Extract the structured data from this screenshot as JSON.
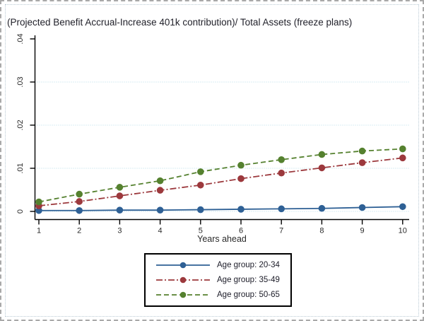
{
  "chart_data": {
    "type": "line",
    "title": "(Projected Benefit Accrual-Increase 401k contribution)/ Total Assets (freeze plans)",
    "xlabel": "Years ahead",
    "ylabel": "",
    "x": [
      1,
      2,
      3,
      4,
      5,
      6,
      7,
      8,
      9,
      10
    ],
    "xlim": [
      1,
      10
    ],
    "ylim": [
      0,
      0.04
    ],
    "yticks": [
      {
        "label": "0",
        "value": 0.0,
        "grid": true
      },
      {
        "label": ".01",
        "value": 0.01,
        "grid": true
      },
      {
        "label": ".02",
        "value": 0.02,
        "grid": true
      },
      {
        "label": ".03",
        "value": 0.03,
        "grid": true
      },
      {
        "label": ".04",
        "value": 0.04,
        "grid": false
      }
    ],
    "grid": "horizontal-dotted",
    "gridline_color": "#b5dbe6",
    "axis_color": "#000000",
    "legend_position": "bottom-center",
    "series": [
      {
        "name": "Age group: 20-34",
        "color": "#2e6095",
        "line_style": "solid",
        "marker": "circle",
        "values": [
          0.0002,
          0.0002,
          0.0003,
          0.0003,
          0.0004,
          0.0005,
          0.0006,
          0.0007,
          0.0009,
          0.0011
        ]
      },
      {
        "name": "Age group: 35-49",
        "color": "#9c393d",
        "line_style": "dash-dot",
        "marker": "circle",
        "values": [
          0.0013,
          0.0023,
          0.0036,
          0.0049,
          0.0061,
          0.0076,
          0.0089,
          0.0101,
          0.0113,
          0.0124
        ]
      },
      {
        "name": "Age group: 50-65",
        "color": "#55812f",
        "line_style": "dash",
        "marker": "circle",
        "values": [
          0.0022,
          0.004,
          0.0056,
          0.0071,
          0.0092,
          0.0107,
          0.012,
          0.0132,
          0.014,
          0.0145
        ]
      }
    ]
  }
}
